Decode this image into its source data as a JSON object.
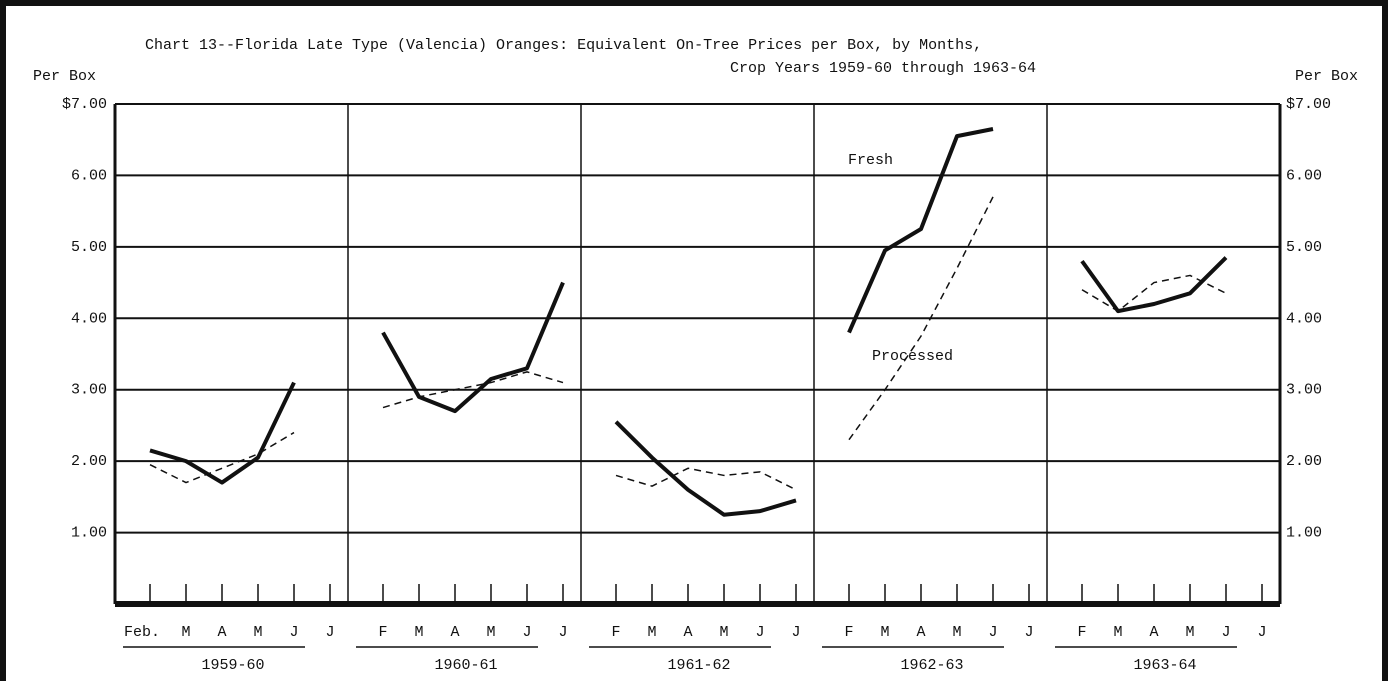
{
  "chart_data": {
    "type": "line",
    "title": "Chart 13--Florida Late Type (Valencia) Oranges:  Equivalent On-Tree Prices per Box, by Months,",
    "subtitle": "Crop Years 1959-60 through 1963-64",
    "y_label_left": "Per Box",
    "y_label_right": "Per Box",
    "ylim": [
      0,
      7
    ],
    "yticks": [
      {
        "value": 1,
        "label": "1.00"
      },
      {
        "value": 2,
        "label": "2.00"
      },
      {
        "value": 3,
        "label": "3.00"
      },
      {
        "value": 4,
        "label": "4.00"
      },
      {
        "value": 5,
        "label": "5.00"
      },
      {
        "value": 6,
        "label": "6.00"
      },
      {
        "value": 7,
        "label": "$7.00"
      }
    ],
    "grid": true,
    "series": [
      {
        "name": "Fresh",
        "color": "#111111",
        "style": "solid"
      },
      {
        "name": "Processed",
        "color": "#111111",
        "style": "dashed"
      }
    ],
    "panels": [
      {
        "label": "1959-60",
        "categories": [
          "Feb.",
          "M",
          "A",
          "M",
          "J",
          "J"
        ],
        "values": [
          [
            2.15,
            2.0,
            1.7,
            2.05,
            3.1,
            null
          ],
          [
            1.95,
            1.7,
            1.9,
            2.1,
            2.4,
            null
          ]
        ]
      },
      {
        "label": "1960-61",
        "categories": [
          "F",
          "M",
          "A",
          "M",
          "J",
          "J"
        ],
        "values": [
          [
            3.8,
            2.9,
            2.7,
            3.15,
            3.3,
            4.5
          ],
          [
            2.75,
            2.9,
            3.0,
            3.1,
            3.25,
            3.1
          ]
        ]
      },
      {
        "label": "1961-62",
        "categories": [
          "F",
          "M",
          "A",
          "M",
          "J",
          "J"
        ],
        "values": [
          [
            2.55,
            2.05,
            1.6,
            1.25,
            1.3,
            1.45
          ],
          [
            1.8,
            1.65,
            1.9,
            1.8,
            1.85,
            1.6
          ]
        ]
      },
      {
        "label": "1962-63",
        "categories": [
          "F",
          "M",
          "A",
          "M",
          "J",
          "J"
        ],
        "values": [
          [
            3.8,
            4.95,
            5.25,
            6.55,
            6.65,
            null
          ],
          [
            2.3,
            3.0,
            3.75,
            4.7,
            5.7,
            null
          ]
        ]
      },
      {
        "label": "1963-64",
        "categories": [
          "F",
          "M",
          "A",
          "M",
          "J",
          "J"
        ],
        "values": [
          [
            4.8,
            4.1,
            4.2,
            4.35,
            4.85,
            null
          ],
          [
            4.4,
            4.1,
            4.5,
            4.6,
            4.35,
            null
          ]
        ]
      }
    ]
  }
}
